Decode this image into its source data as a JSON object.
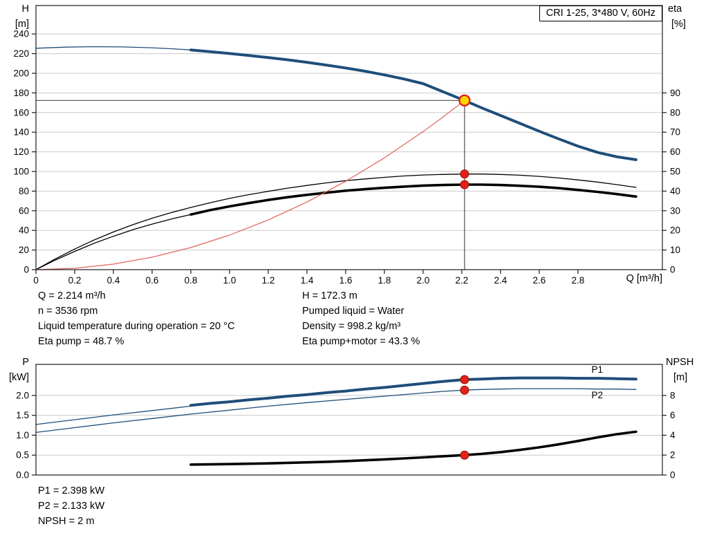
{
  "title_box": "CRI 1-25, 3*480 V, 60Hz",
  "top_chart": {
    "y_left_title": "H",
    "y_left_unit": "[m]",
    "y_right_title": "eta",
    "y_right_unit": "[%]",
    "x_axis_label": "Q [m³/h]"
  },
  "bottom_chart": {
    "y_left_title": "P",
    "y_left_unit": "[kW]",
    "y_right_title": "NPSH",
    "y_right_unit": "[m]"
  },
  "operating_data": {
    "left": [
      "Q = 2.214 m³/h",
      "n = 3536 rpm",
      "Liquid temperature during operation = 20 °C",
      "Eta pump = 48.7 %"
    ],
    "right": [
      "H = 172.3 m",
      "Pumped liquid = Water",
      "Density = 998.2 kg/m³",
      "Eta pump+motor = 43.3 %"
    ]
  },
  "power_data": [
    "P1 = 2.398 kW",
    "P2 = 2.133 kW",
    "NPSH = 2 m"
  ],
  "colors": {
    "curve_blue": "#1f4e79",
    "curve_black": "#000000",
    "curve_red": "#e0635a",
    "marker_red": "#e32119",
    "marker_red_edge": "#8d0f06",
    "duty_yellow": "#ffd500",
    "grid": "#c9c9c9",
    "crosshair": "#4d4d4d"
  },
  "chart_data": [
    {
      "id": "head-efficiency-chart",
      "type": "line",
      "title": "CRI 1-25, 3*480 V, 60Hz",
      "xlabel": "Q [m³/h]",
      "ylabel_left": "H [m]",
      "ylabel_right": "eta [%]",
      "xlim": [
        0,
        3.236
      ],
      "ylim_left": [
        0,
        269
      ],
      "ylim_right": [
        0,
        134.5
      ],
      "x_ticks": {
        "values": [
          0,
          0.2,
          0.4,
          0.6,
          0.8,
          1.0,
          1.2,
          1.4,
          1.6,
          1.8,
          2.0,
          2.2,
          2.4,
          2.6,
          2.8
        ],
        "labels": [
          "0",
          "0.2",
          "0.4",
          "0.6",
          "0.8",
          "1.0",
          "1.2",
          "1.4",
          "1.6",
          "1.8",
          "2.0",
          "2.2",
          "2.4",
          "2.6",
          "2.8"
        ]
      },
      "y_ticks_left": {
        "values": [
          0,
          20,
          40,
          60,
          80,
          100,
          120,
          140,
          160,
          180,
          200,
          220,
          240
        ],
        "labels": [
          "0",
          "20",
          "40",
          "60",
          "80",
          "100",
          "120",
          "140",
          "160",
          "180",
          "200",
          "220",
          "240"
        ]
      },
      "y_ticks_right": {
        "values": [
          0,
          10,
          20,
          30,
          40,
          50,
          60,
          70,
          80,
          90
        ],
        "labels": [
          "0",
          "10",
          "20",
          "30",
          "40",
          "50",
          "60",
          "70",
          "80",
          "90"
        ]
      },
      "crosshair": {
        "x": 2.214,
        "y": 172.3
      },
      "series": [
        {
          "name": "head-curve-low-flow",
          "axis": "left",
          "color": "#1f4e79",
          "width": 1.3,
          "points": [
            [
              0,
              225.5
            ],
            [
              0.15,
              226.6
            ],
            [
              0.3,
              227.1
            ],
            [
              0.45,
              226.8
            ],
            [
              0.6,
              226
            ],
            [
              0.7,
              225
            ],
            [
              0.8,
              223.8
            ]
          ]
        },
        {
          "name": "head-curve",
          "axis": "left",
          "color": "#1f4e79",
          "width": 4,
          "points": [
            [
              0.8,
              223.8
            ],
            [
              0.9,
              222
            ],
            [
              1.0,
              220.1
            ],
            [
              1.1,
              218.1
            ],
            [
              1.2,
              216
            ],
            [
              1.3,
              213.7
            ],
            [
              1.4,
              211.2
            ],
            [
              1.5,
              208.4
            ],
            [
              1.6,
              205.4
            ],
            [
              1.7,
              202.1
            ],
            [
              1.8,
              198.4
            ],
            [
              1.9,
              194.2
            ],
            [
              2.0,
              189.4
            ],
            [
              2.1,
              181.5
            ],
            [
              2.214,
              172.3
            ],
            [
              2.3,
              165
            ],
            [
              2.4,
              157
            ],
            [
              2.5,
              149
            ],
            [
              2.6,
              141
            ],
            [
              2.7,
              133.2
            ],
            [
              2.8,
              125.8
            ],
            [
              2.9,
              119.5
            ],
            [
              3.0,
              115
            ],
            [
              3.1,
              112
            ]
          ]
        },
        {
          "name": "eta-pump-curve",
          "axis": "right",
          "color": "#000000",
          "width": 1.3,
          "points": [
            [
              0,
              0
            ],
            [
              0.1,
              5.5
            ],
            [
              0.2,
              10.5
            ],
            [
              0.3,
              15.1
            ],
            [
              0.4,
              19.2
            ],
            [
              0.5,
              22.9
            ],
            [
              0.6,
              26.2
            ],
            [
              0.7,
              29.1
            ],
            [
              0.8,
              31.7
            ],
            [
              0.9,
              34.1
            ],
            [
              1.0,
              36.3
            ],
            [
              1.1,
              38.2
            ],
            [
              1.2,
              39.9
            ],
            [
              1.3,
              41.5
            ],
            [
              1.4,
              42.9
            ],
            [
              1.5,
              44.2
            ],
            [
              1.6,
              45.3
            ],
            [
              1.7,
              46.2
            ],
            [
              1.8,
              47
            ],
            [
              1.9,
              47.7
            ],
            [
              2.0,
              48.2
            ],
            [
              2.1,
              48.5
            ],
            [
              2.214,
              48.7
            ],
            [
              2.3,
              48.7
            ],
            [
              2.4,
              48.5
            ],
            [
              2.5,
              48.1
            ],
            [
              2.6,
              47.5
            ],
            [
              2.7,
              46.7
            ],
            [
              2.8,
              45.7
            ],
            [
              2.9,
              44.6
            ],
            [
              3.0,
              43.3
            ],
            [
              3.1,
              41.9
            ]
          ]
        },
        {
          "name": "eta-pump-motor-curve-low-flow",
          "axis": "right",
          "color": "#000000",
          "width": 1.3,
          "points": [
            [
              0,
              0
            ],
            [
              0.1,
              4.9
            ],
            [
              0.2,
              9.3
            ],
            [
              0.3,
              13.4
            ],
            [
              0.4,
              17
            ],
            [
              0.5,
              20.3
            ],
            [
              0.6,
              23.2
            ],
            [
              0.7,
              25.8
            ],
            [
              0.8,
              28.1
            ]
          ]
        },
        {
          "name": "eta-pump-motor-curve",
          "axis": "right",
          "color": "#000000",
          "width": 3.6,
          "points": [
            [
              0.8,
              28.1
            ],
            [
              0.9,
              30.3
            ],
            [
              1.0,
              32.2
            ],
            [
              1.1,
              33.9
            ],
            [
              1.2,
              35.5
            ],
            [
              1.3,
              36.9
            ],
            [
              1.4,
              38.1
            ],
            [
              1.5,
              39.2
            ],
            [
              1.6,
              40.2
            ],
            [
              1.7,
              41
            ],
            [
              1.8,
              41.7
            ],
            [
              1.9,
              42.3
            ],
            [
              2.0,
              42.8
            ],
            [
              2.1,
              43.1
            ],
            [
              2.214,
              43.3
            ],
            [
              2.3,
              43.3
            ],
            [
              2.4,
              43.1
            ],
            [
              2.5,
              42.7
            ],
            [
              2.6,
              42.2
            ],
            [
              2.7,
              41.5
            ],
            [
              2.8,
              40.6
            ],
            [
              2.9,
              39.6
            ],
            [
              3.0,
              38.5
            ],
            [
              3.1,
              37.2
            ]
          ]
        },
        {
          "name": "system-curve",
          "axis": "left",
          "color": "#e0635a",
          "width": 1.2,
          "points": [
            [
              0,
              0
            ],
            [
              0.2,
              1.4
            ],
            [
              0.4,
              5.6
            ],
            [
              0.6,
              12.7
            ],
            [
              0.8,
              22.5
            ],
            [
              1.0,
              35.2
            ],
            [
              1.2,
              50.6
            ],
            [
              1.4,
              68.9
            ],
            [
              1.6,
              90
            ],
            [
              1.8,
              113.9
            ],
            [
              2.0,
              140.6
            ],
            [
              2.1,
              155
            ],
            [
              2.214,
              172.3
            ]
          ]
        }
      ],
      "markers": [
        {
          "name": "eta-pump-point",
          "x": 2.214,
          "y": 48.7,
          "axis": "right",
          "r": 6,
          "fill": "#e32119",
          "stroke": "#8d0f06",
          "stroke_width": 1
        },
        {
          "name": "eta-pump-motor-point",
          "x": 2.214,
          "y": 43.3,
          "axis": "right",
          "r": 6,
          "fill": "#e32119",
          "stroke": "#8d0f06",
          "stroke_width": 1
        },
        {
          "name": "duty-point",
          "x": 2.214,
          "y": 172.3,
          "axis": "left",
          "r": 7.5,
          "fill": "#ffd500",
          "stroke": "#e32119",
          "stroke_width": 2.4
        }
      ],
      "annotations": []
    },
    {
      "id": "power-npsh-chart",
      "type": "line",
      "title": "",
      "xlabel": "Q [m³/h]",
      "ylabel_left": "P [kW]",
      "ylabel_right": "NPSH [m]",
      "xlim": [
        0,
        3.236
      ],
      "ylim_left": [
        0,
        2.78
      ],
      "ylim_right": [
        0,
        11.12
      ],
      "y_ticks_left": {
        "values": [
          0,
          0.5,
          1,
          1.5,
          2
        ],
        "labels": [
          "0.0",
          "0.5",
          "1.0",
          "1.5",
          "2.0"
        ]
      },
      "y_ticks_right": {
        "values": [
          0,
          2,
          4,
          6,
          8
        ],
        "labels": [
          "0",
          "2",
          "4",
          "6",
          "8"
        ]
      },
      "series": [
        {
          "name": "p1-curve-low-flow",
          "axis": "left",
          "color": "#1f4e79",
          "width": 1.3,
          "points": [
            [
              0,
              1.27
            ],
            [
              0.2,
              1.39
            ],
            [
              0.4,
              1.51
            ],
            [
              0.6,
              1.62
            ],
            [
              0.8,
              1.73
            ]
          ]
        },
        {
          "name": "p1-curve",
          "axis": "left",
          "color": "#1f4e79",
          "width": 4,
          "points": [
            [
              0.8,
              1.75
            ],
            [
              0.9,
              1.8
            ],
            [
              1.0,
              1.84
            ],
            [
              1.1,
              1.89
            ],
            [
              1.2,
              1.93
            ],
            [
              1.3,
              1.98
            ],
            [
              1.4,
              2.02
            ],
            [
              1.5,
              2.07
            ],
            [
              1.6,
              2.11
            ],
            [
              1.7,
              2.16
            ],
            [
              1.8,
              2.2
            ],
            [
              1.9,
              2.25
            ],
            [
              2.0,
              2.3
            ],
            [
              2.1,
              2.35
            ],
            [
              2.214,
              2.398
            ],
            [
              2.3,
              2.41
            ],
            [
              2.4,
              2.43
            ],
            [
              2.5,
              2.44
            ],
            [
              2.6,
              2.44
            ],
            [
              2.7,
              2.44
            ],
            [
              2.8,
              2.43
            ],
            [
              2.9,
              2.43
            ],
            [
              3.0,
              2.42
            ],
            [
              3.1,
              2.41
            ]
          ]
        },
        {
          "name": "p2-curve",
          "axis": "left",
          "color": "#1f4e79",
          "width": 1.3,
          "points": [
            [
              0,
              1.07
            ],
            [
              0.2,
              1.19
            ],
            [
              0.4,
              1.31
            ],
            [
              0.6,
              1.42
            ],
            [
              0.8,
              1.53
            ],
            [
              1.0,
              1.63
            ],
            [
              1.2,
              1.73
            ],
            [
              1.4,
              1.82
            ],
            [
              1.6,
              1.9
            ],
            [
              1.8,
              1.98
            ],
            [
              2.0,
              2.06
            ],
            [
              2.1,
              2.1
            ],
            [
              2.214,
              2.133
            ],
            [
              2.3,
              2.15
            ],
            [
              2.4,
              2.16
            ],
            [
              2.5,
              2.17
            ],
            [
              2.6,
              2.17
            ],
            [
              2.7,
              2.17
            ],
            [
              2.8,
              2.17
            ],
            [
              2.9,
              2.16
            ],
            [
              3.0,
              2.16
            ],
            [
              3.1,
              2.15
            ]
          ]
        },
        {
          "name": "npsh-curve",
          "axis": "right",
          "color": "#000000",
          "width": 3.6,
          "points": [
            [
              0.8,
              1.05
            ],
            [
              0.9,
              1.07
            ],
            [
              1.0,
              1.1
            ],
            [
              1.1,
              1.13
            ],
            [
              1.2,
              1.17
            ],
            [
              1.3,
              1.22
            ],
            [
              1.4,
              1.27
            ],
            [
              1.5,
              1.33
            ],
            [
              1.6,
              1.4
            ],
            [
              1.7,
              1.48
            ],
            [
              1.8,
              1.57
            ],
            [
              1.9,
              1.67
            ],
            [
              2.0,
              1.77
            ],
            [
              2.1,
              1.88
            ],
            [
              2.214,
              2
            ],
            [
              2.3,
              2.12
            ],
            [
              2.4,
              2.3
            ],
            [
              2.5,
              2.52
            ],
            [
              2.6,
              2.78
            ],
            [
              2.7,
              3.08
            ],
            [
              2.8,
              3.42
            ],
            [
              2.9,
              3.78
            ],
            [
              3.0,
              4.1
            ],
            [
              3.1,
              4.35
            ]
          ]
        }
      ],
      "markers": [
        {
          "name": "p1-point",
          "x": 2.214,
          "y": 2.398,
          "axis": "left",
          "r": 6,
          "fill": "#e32119",
          "stroke": "#8d0f06",
          "stroke_width": 1
        },
        {
          "name": "p2-point",
          "x": 2.214,
          "y": 2.133,
          "axis": "left",
          "r": 6,
          "fill": "#e32119",
          "stroke": "#8d0f06",
          "stroke_width": 1
        },
        {
          "name": "npsh-point",
          "x": 2.214,
          "y": 2,
          "axis": "right",
          "r": 6,
          "fill": "#e32119",
          "stroke": "#8d0f06",
          "stroke_width": 1
        }
      ],
      "annotations": [
        {
          "name": "p1-curve-label",
          "label": "P1",
          "x": 2.87,
          "y": 2.57,
          "axis": "left",
          "color": "#1f4e79"
        },
        {
          "name": "p2-curve-label",
          "label": "P2",
          "x": 2.87,
          "y": 1.93,
          "axis": "left",
          "color": "#1f4e79"
        }
      ]
    }
  ]
}
